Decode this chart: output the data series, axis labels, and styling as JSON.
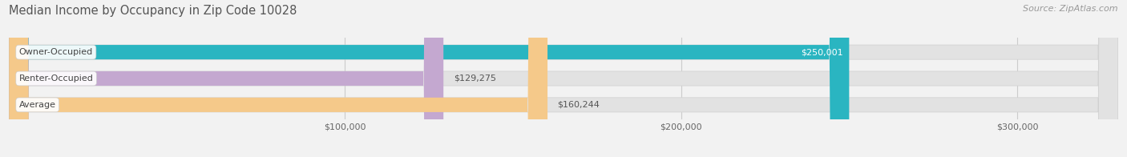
{
  "title": "Median Income by Occupancy in Zip Code 10028",
  "source": "Source: ZipAtlas.com",
  "categories": [
    "Owner-Occupied",
    "Renter-Occupied",
    "Average"
  ],
  "values": [
    250001,
    129275,
    160244
  ],
  "bar_colors": [
    "#2ab5c1",
    "#c4a8d0",
    "#f5c98a"
  ],
  "value_labels": [
    "$250,001",
    "$129,275",
    "$160,244"
  ],
  "value_inside": [
    true,
    false,
    false
  ],
  "xmin": 0,
  "xmax": 330000,
  "xticks": [
    100000,
    200000,
    300000
  ],
  "xtick_labels": [
    "$100,000",
    "$200,000",
    "$300,000"
  ],
  "background_color": "#f2f2f2",
  "bar_bg_color": "#e2e2e2",
  "bar_bg_border_color": "#d0d0d0",
  "title_fontsize": 10.5,
  "source_fontsize": 8,
  "bar_label_fontsize": 8,
  "value_label_fontsize": 8,
  "bar_height": 0.55,
  "figsize": [
    14.06,
    1.96
  ],
  "dpi": 100
}
